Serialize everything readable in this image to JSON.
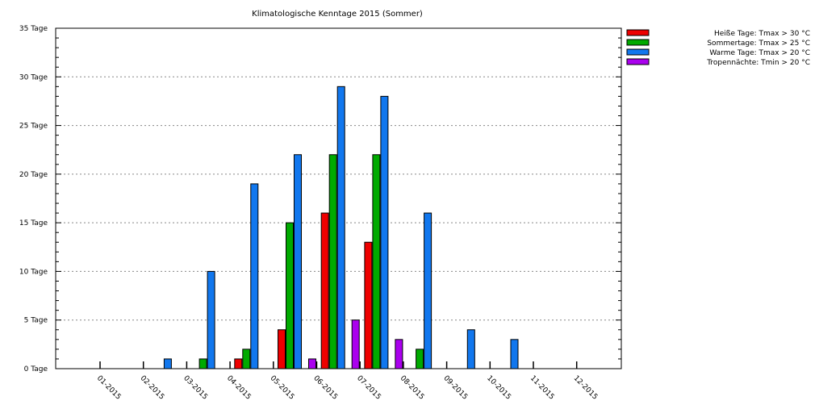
{
  "chart_data": {
    "type": "bar",
    "title": "Klimatologische Kenntage 2015 (Sommer)",
    "categories": [
      "01-2015",
      "02-2015",
      "03-2015",
      "04-2015",
      "05-2015",
      "06-2015",
      "07-2015",
      "08-2015",
      "09-2015",
      "10-2015",
      "11-2015",
      "12-2015"
    ],
    "ylim": [
      0,
      35
    ],
    "yticks": [
      0,
      5,
      10,
      15,
      20,
      25,
      30,
      35
    ],
    "ytick_labels": [
      "0 Tage",
      "5 Tage",
      "10 Tage",
      "15 Tage",
      "20 Tage",
      "25 Tage",
      "30 Tage",
      "35 Tage"
    ],
    "grid": true,
    "legend_position": "top-right",
    "series": [
      {
        "name": "Heiße Tage: Tmax > 30 °C",
        "color": "#ee0000",
        "values": [
          0,
          0,
          0,
          0,
          1,
          4,
          16,
          13,
          0,
          0,
          0,
          0
        ]
      },
      {
        "name": "Sommertage: Tmax > 25 °C",
        "color": "#00aa00",
        "values": [
          0,
          0,
          0,
          1,
          2,
          15,
          22,
          22,
          2,
          0,
          0,
          0
        ]
      },
      {
        "name": "Warme Tage: Tmax > 20 °C",
        "color": "#1177ee",
        "values": [
          0,
          0,
          1,
          10,
          19,
          22,
          29,
          28,
          16,
          4,
          3,
          0
        ]
      },
      {
        "name": "Tropennächte: Tmin > 20 °C",
        "color": "#aa00ee",
        "values": [
          0,
          0,
          0,
          0,
          0,
          1,
          5,
          3,
          0,
          0,
          0,
          0
        ]
      }
    ]
  }
}
